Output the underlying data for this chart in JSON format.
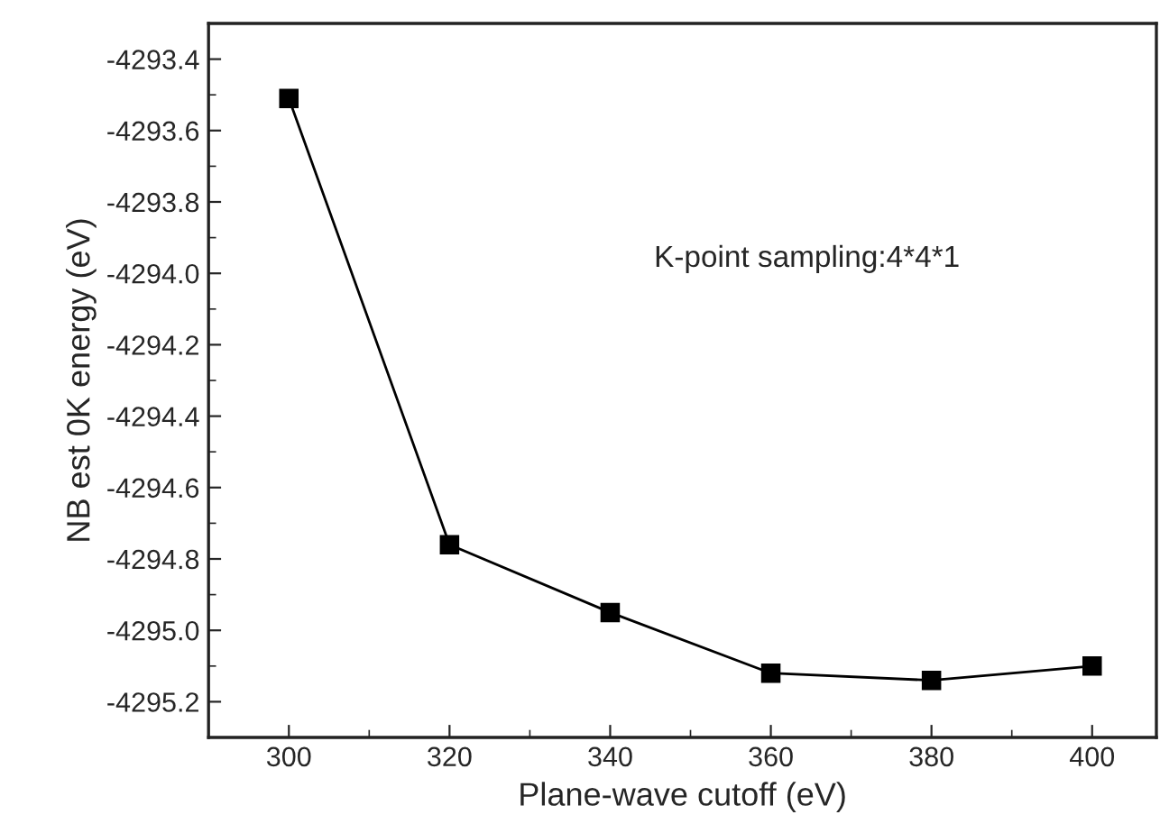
{
  "chart_data": {
    "type": "line",
    "xlabel": "Plane-wave cutoff (eV)",
    "ylabel": "NB est 0K energy (eV)",
    "x": [
      300,
      320,
      340,
      360,
      380,
      400
    ],
    "series": [
      {
        "color": "#000000",
        "values": [
          -4293.51,
          -4294.76,
          -4294.95,
          -4295.12,
          -4295.14,
          -4295.1
        ]
      }
    ],
    "marker": "square",
    "line_style": "solid",
    "grid": false,
    "xlim": [
      290,
      408
    ],
    "xticks": [
      300,
      320,
      340,
      360,
      380,
      400
    ],
    "ylim": [
      -4295.3,
      -4293.3
    ],
    "yticks": [
      {
        "value": -4295.2,
        "label": "-4295.2"
      },
      {
        "value": -4295.0,
        "label": "-4295.0"
      },
      {
        "value": -4294.8,
        "label": "-4294.8"
      },
      {
        "value": -4294.6,
        "label": "-4294.6"
      },
      {
        "value": -4294.4,
        "label": "-4294.4"
      },
      {
        "value": -4294.2,
        "label": "-4294.2"
      },
      {
        "value": -4294.0,
        "label": "-4294.0"
      },
      {
        "value": -4293.8,
        "label": "-4293.8"
      },
      {
        "value": -4293.6,
        "label": "-4293.6"
      },
      {
        "value": -4293.4,
        "label": "-4293.4"
      }
    ],
    "annotations": [
      "K-point sampling:4*4*1"
    ]
  }
}
